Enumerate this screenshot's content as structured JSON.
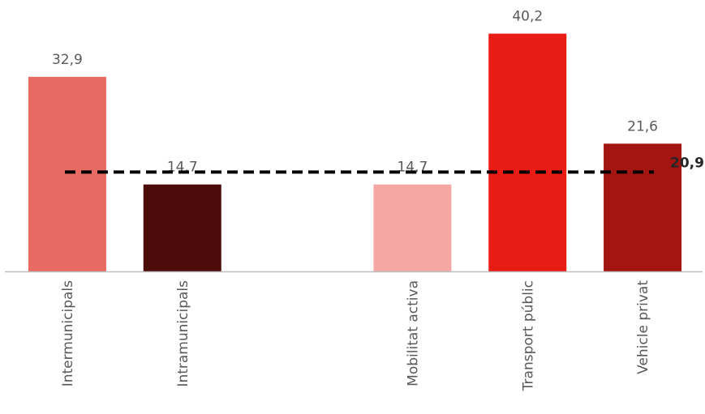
{
  "chart_data": {
    "type": "bar",
    "title": "",
    "xlabel": "",
    "ylabel": "",
    "ylim": [
      0,
      45
    ],
    "grid": false,
    "legend": "none",
    "slots": 6,
    "categories": [
      {
        "label": "Intermunicipals",
        "value": 32.9,
        "value_label": "32,9",
        "color": "#E76B63",
        "slot": 0
      },
      {
        "label": "Intramunicipals",
        "value": 14.7,
        "value_label": "14,7",
        "color": "#4B0C0A",
        "slot": 1
      },
      {
        "label": "Mobilitat activa",
        "value": 14.7,
        "value_label": "14,7",
        "color": "#F5A7A3",
        "slot": 3
      },
      {
        "label": "Transport públic",
        "value": 40.2,
        "value_label": "40,2",
        "color": "#E81B15",
        "slot": 4
      },
      {
        "label": "Vehicle privat",
        "value": 21.6,
        "value_label": "21,6",
        "color": "#A31510",
        "slot": 5
      }
    ],
    "average_line": {
      "value": 20.9,
      "label": "20,9",
      "color": "#000000",
      "style": "dashed"
    }
  }
}
